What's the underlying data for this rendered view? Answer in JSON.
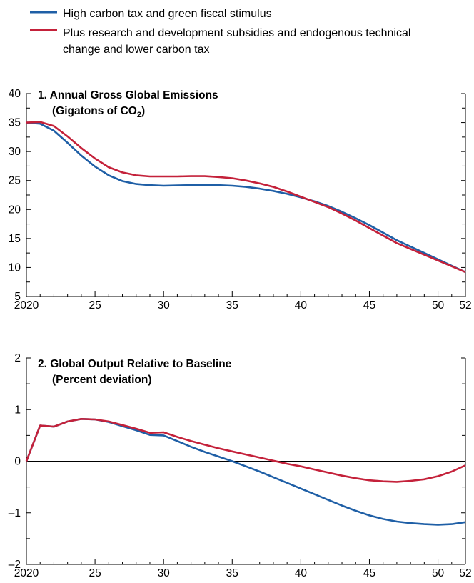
{
  "legend": [
    {
      "label": "High carbon tax and green fiscal stimulus",
      "color": "#1f5fa6"
    },
    {
      "label_lines": [
        "Plus research and development subsidies and endogenous technical",
        "change and lower carbon tax"
      ],
      "color": "#c4213a"
    }
  ],
  "chart_data": [
    {
      "type": "line",
      "title_lines": [
        "1. Annual Gross Global Emissions",
        "(Gigatons of CO"
      ],
      "title_sub": "2",
      "title_close": ")",
      "ylim": [
        5,
        40
      ],
      "xlim": [
        2020,
        2052
      ],
      "yticks": [
        5,
        10,
        15,
        20,
        25,
        30,
        35,
        40
      ],
      "ytick_labels": [
        "5",
        "10",
        "15",
        "20",
        "25",
        "30",
        "35",
        "40"
      ],
      "xticks": [
        2020,
        2025,
        2030,
        2035,
        2040,
        2045,
        2050,
        2052
      ],
      "xtick_labels": [
        "2020",
        "25",
        "30",
        "35",
        "40",
        "45",
        "50",
        "52"
      ],
      "zero_line": false,
      "series": [
        {
          "name": "High carbon tax and green fiscal stimulus",
          "color": "#1f5fa6",
          "x": [
            2020,
            2021,
            2022,
            2023,
            2024,
            2025,
            2026,
            2027,
            2028,
            2029,
            2030,
            2031,
            2032,
            2033,
            2034,
            2035,
            2036,
            2037,
            2038,
            2039,
            2040,
            2041,
            2042,
            2043,
            2044,
            2045,
            2046,
            2047,
            2048,
            2049,
            2050,
            2051,
            2052
          ],
          "y": [
            35,
            34.8,
            33.6,
            31.5,
            29.3,
            27.4,
            25.9,
            24.9,
            24.4,
            24.2,
            24.1,
            24.15,
            24.2,
            24.25,
            24.2,
            24.1,
            23.9,
            23.6,
            23.2,
            22.7,
            22.1,
            21.4,
            20.6,
            19.6,
            18.5,
            17.3,
            16.0,
            14.7,
            13.6,
            12.5,
            11.4,
            10.3,
            9.2
          ]
        },
        {
          "name": "Plus research and development subsidies and endogenous technical change and lower carbon tax",
          "color": "#c4213a",
          "x": [
            2020,
            2021,
            2022,
            2023,
            2024,
            2025,
            2026,
            2027,
            2028,
            2029,
            2030,
            2031,
            2032,
            2033,
            2034,
            2035,
            2036,
            2037,
            2038,
            2039,
            2040,
            2041,
            2042,
            2043,
            2044,
            2045,
            2046,
            2047,
            2048,
            2049,
            2050,
            2051,
            2052
          ],
          "y": [
            35,
            35.1,
            34.4,
            32.6,
            30.6,
            28.8,
            27.3,
            26.4,
            25.9,
            25.7,
            25.7,
            25.7,
            25.75,
            25.75,
            25.6,
            25.4,
            25.0,
            24.5,
            23.9,
            23.1,
            22.2,
            21.3,
            20.4,
            19.3,
            18.1,
            16.8,
            15.5,
            14.2,
            13.2,
            12.2,
            11.2,
            10.2,
            9.2
          ]
        }
      ]
    },
    {
      "type": "line",
      "title_lines": [
        "2. Global Output Relative to Baseline",
        "(Percent deviation)"
      ],
      "ylim": [
        -2,
        2
      ],
      "xlim": [
        2020,
        2052
      ],
      "yticks": [
        -2,
        -1,
        0,
        1,
        2
      ],
      "ytick_labels": [
        "–2",
        "–1",
        "0",
        "1",
        "2"
      ],
      "xticks": [
        2020,
        2025,
        2030,
        2035,
        2040,
        2045,
        2050,
        2052
      ],
      "xtick_labels": [
        "2020",
        "25",
        "30",
        "35",
        "40",
        "45",
        "50",
        "52"
      ],
      "zero_line": true,
      "series": [
        {
          "name": "High carbon tax and green fiscal stimulus",
          "color": "#1f5fa6",
          "x": [
            2020,
            2021,
            2022,
            2023,
            2024,
            2025,
            2026,
            2027,
            2028,
            2029,
            2030,
            2031,
            2032,
            2033,
            2034,
            2035,
            2036,
            2037,
            2038,
            2039,
            2040,
            2041,
            2042,
            2043,
            2044,
            2045,
            2046,
            2047,
            2048,
            2049,
            2050,
            2051,
            2052
          ],
          "y": [
            0,
            0.69,
            0.67,
            0.77,
            0.82,
            0.81,
            0.76,
            0.68,
            0.6,
            0.51,
            0.5,
            0.39,
            0.28,
            0.18,
            0.09,
            0.0,
            -0.1,
            -0.2,
            -0.31,
            -0.42,
            -0.53,
            -0.64,
            -0.75,
            -0.86,
            -0.96,
            -1.05,
            -1.12,
            -1.17,
            -1.2,
            -1.22,
            -1.23,
            -1.22,
            -1.18
          ]
        },
        {
          "name": "Plus research and development subsidies and endogenous technical change and lower carbon tax",
          "color": "#c4213a",
          "x": [
            2020,
            2021,
            2022,
            2023,
            2024,
            2025,
            2026,
            2027,
            2028,
            2029,
            2030,
            2031,
            2032,
            2033,
            2034,
            2035,
            2036,
            2037,
            2038,
            2039,
            2040,
            2041,
            2042,
            2043,
            2044,
            2045,
            2046,
            2047,
            2048,
            2049,
            2050,
            2051,
            2052
          ],
          "y": [
            0,
            0.69,
            0.67,
            0.77,
            0.82,
            0.81,
            0.77,
            0.7,
            0.63,
            0.55,
            0.56,
            0.47,
            0.39,
            0.32,
            0.25,
            0.19,
            0.13,
            0.07,
            0.01,
            -0.05,
            -0.1,
            -0.16,
            -0.22,
            -0.28,
            -0.33,
            -0.37,
            -0.39,
            -0.4,
            -0.38,
            -0.35,
            -0.29,
            -0.2,
            -0.08
          ]
        }
      ]
    }
  ]
}
